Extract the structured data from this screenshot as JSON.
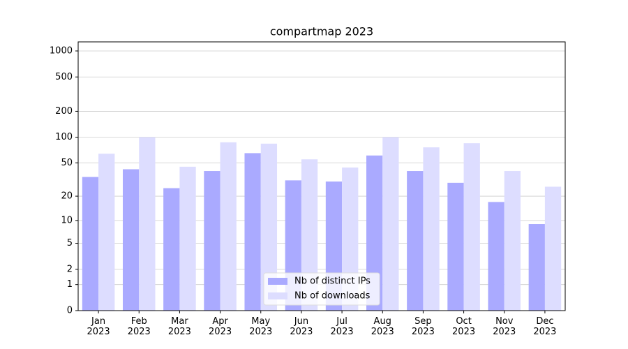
{
  "chart_data": {
    "type": "bar",
    "title": "compartmap 2023",
    "categories": [
      "Jan\n2023",
      "Feb\n2023",
      "Mar\n2023",
      "Apr\n2023",
      "May\n2023",
      "Jun\n2023",
      "Jul\n2023",
      "Aug\n2023",
      "Sep\n2023",
      "Oct\n2023",
      "Nov\n2023",
      "Dec\n2023"
    ],
    "series": [
      {
        "name": "Nb of distinct IPs",
        "color": "#aaaaff",
        "values": [
          34,
          42,
          25,
          40,
          65,
          31,
          30,
          61,
          40,
          29,
          17,
          9
        ]
      },
      {
        "name": "Nb of downloads",
        "color": "#ddddff",
        "values": [
          64,
          100,
          45,
          87,
          84,
          55,
          44,
          100,
          76,
          85,
          40,
          26
        ]
      }
    ],
    "yscale": "log1p",
    "ylim": [
      0,
      1273
    ],
    "yticks": [
      0,
      1,
      2,
      5,
      10,
      20,
      50,
      100,
      200,
      500,
      1000
    ],
    "grid": true,
    "legend": "lower center"
  }
}
